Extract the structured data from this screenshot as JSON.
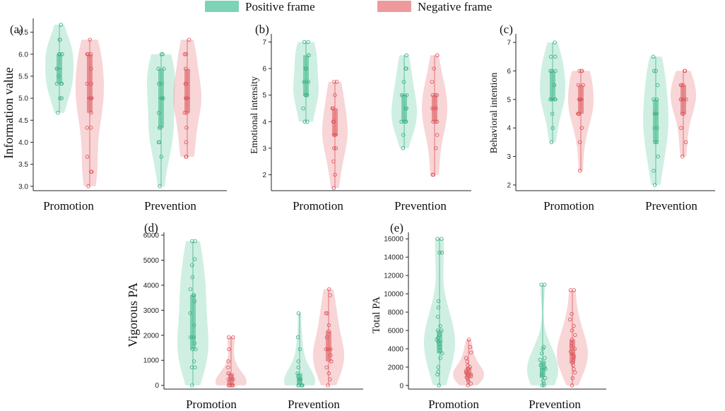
{
  "legend": {
    "positive_label": "Positive frame",
    "negative_label": "Negative frame",
    "positive_color": "#7dd3b6",
    "negative_color": "#ee9a9c"
  },
  "colors": {
    "positive_fill": "#a8e2cc",
    "positive_stroke": "#3fb486",
    "positive_box": "#5fc49c",
    "negative_fill": "#f3b3b5",
    "negative_stroke": "#de5a60",
    "negative_box": "#e27378"
  },
  "chart_data": [
    {
      "type": "violin",
      "panel": "(a)",
      "ylabel": "Information value",
      "ylim": [
        2.9,
        6.75
      ],
      "yticks": [
        3.0,
        3.5,
        4.0,
        4.5,
        5.0,
        5.5,
        6.0,
        6.5
      ],
      "tick_decimals": 1,
      "categories": [
        "Promotion",
        "Prevention"
      ],
      "groups": [
        {
          "category": "Promotion",
          "frame": "positive",
          "min": 4.67,
          "q1": 5.33,
          "median": 5.67,
          "q3": 6.0,
          "max": 6.67,
          "points": [
            4.67,
            5.0,
            5.0,
            5.33,
            5.33,
            5.33,
            5.5,
            5.67,
            5.67,
            6.0,
            6.0,
            6.0,
            6.0,
            6.33,
            6.33,
            6.67
          ]
        },
        {
          "category": "Promotion",
          "frame": "negative",
          "min": 3.0,
          "q1": 4.67,
          "median": 5.0,
          "q3": 6.0,
          "max": 6.33,
          "points": [
            3.0,
            3.33,
            3.33,
            3.67,
            4.33,
            4.33,
            4.67,
            5.0,
            5.0,
            5.0,
            5.33,
            5.33,
            5.67,
            6.0,
            6.0,
            6.0,
            6.33
          ]
        },
        {
          "category": "Prevention",
          "frame": "positive",
          "min": 3.0,
          "q1": 4.33,
          "median": 5.0,
          "q3": 5.67,
          "max": 6.0,
          "points": [
            3.0,
            3.67,
            4.0,
            4.0,
            4.33,
            4.33,
            4.67,
            5.0,
            5.0,
            5.33,
            5.33,
            5.67,
            5.67,
            6.0,
            6.0
          ]
        },
        {
          "category": "Prevention",
          "frame": "negative",
          "min": 3.67,
          "q1": 4.67,
          "median": 5.0,
          "q3": 5.67,
          "max": 6.33,
          "points": [
            3.67,
            3.67,
            4.0,
            4.33,
            4.67,
            4.67,
            5.0,
            5.0,
            5.0,
            5.33,
            5.33,
            5.67,
            6.0,
            6.0,
            6.33
          ]
        }
      ]
    },
    {
      "type": "violin",
      "panel": "(b)",
      "ylabel": "Emotional intensity",
      "ylim": [
        1.4,
        7.2
      ],
      "yticks": [
        2,
        3,
        4,
        5,
        6,
        7
      ],
      "tick_decimals": 0,
      "categories": [
        "Promotion",
        "Prevention"
      ],
      "groups": [
        {
          "category": "Promotion",
          "frame": "positive",
          "min": 4.0,
          "q1": 5.0,
          "median": 5.5,
          "q3": 6.5,
          "max": 7.0,
          "points": [
            4.0,
            4.0,
            4.5,
            5.0,
            5.0,
            5.0,
            5.5,
            5.5,
            6.0,
            6.0,
            6.5,
            6.5,
            7.0,
            7.0
          ]
        },
        {
          "category": "Promotion",
          "frame": "negative",
          "min": 1.5,
          "q1": 3.5,
          "median": 3.5,
          "q3": 4.5,
          "max": 5.5,
          "points": [
            1.5,
            2.0,
            2.5,
            3.0,
            3.0,
            3.5,
            3.5,
            3.5,
            4.0,
            4.0,
            4.5,
            4.5,
            5.0,
            5.5,
            5.5
          ]
        },
        {
          "category": "Prevention",
          "frame": "positive",
          "min": 3.0,
          "q1": 4.0,
          "median": 5.0,
          "q3": 5.0,
          "max": 6.5,
          "points": [
            3.0,
            3.5,
            4.0,
            4.0,
            4.0,
            4.0,
            4.5,
            4.5,
            5.0,
            5.0,
            5.0,
            5.5,
            6.0,
            6.0,
            6.5
          ]
        },
        {
          "category": "Prevention",
          "frame": "negative",
          "min": 2.0,
          "q1": 4.0,
          "median": 4.5,
          "q3": 5.0,
          "max": 6.5,
          "points": [
            2.0,
            2.0,
            3.0,
            3.5,
            4.0,
            4.0,
            4.0,
            4.5,
            4.5,
            5.0,
            5.0,
            5.0,
            5.5,
            6.0,
            6.5
          ]
        }
      ]
    },
    {
      "type": "violin",
      "panel": "(c)",
      "ylabel": "Behavioral intention",
      "ylim": [
        1.8,
        7.2
      ],
      "yticks": [
        2,
        3,
        4,
        5,
        6,
        7
      ],
      "tick_decimals": 0,
      "categories": [
        "Promotion",
        "Prevention"
      ],
      "groups": [
        {
          "category": "Promotion",
          "frame": "positive",
          "min": 3.5,
          "q1": 5.0,
          "median": 5.0,
          "q3": 6.0,
          "max": 7.0,
          "points": [
            3.5,
            4.0,
            4.5,
            5.0,
            5.0,
            5.0,
            5.0,
            5.5,
            5.5,
            6.0,
            6.0,
            6.0,
            6.5,
            6.5,
            7.0
          ]
        },
        {
          "category": "Promotion",
          "frame": "negative",
          "min": 2.5,
          "q1": 4.5,
          "median": 5.0,
          "q3": 5.5,
          "max": 6.0,
          "points": [
            2.5,
            3.5,
            4.0,
            4.5,
            4.5,
            4.5,
            5.0,
            5.0,
            5.0,
            5.5,
            5.5,
            6.0,
            6.0,
            6.0
          ]
        },
        {
          "category": "Prevention",
          "frame": "positive",
          "min": 2.0,
          "q1": 3.5,
          "median": 4.5,
          "q3": 5.0,
          "max": 6.5,
          "points": [
            2.0,
            2.5,
            3.0,
            3.5,
            3.5,
            4.0,
            4.0,
            4.5,
            4.5,
            5.0,
            5.0,
            5.5,
            6.0,
            6.0,
            6.5
          ]
        },
        {
          "category": "Prevention",
          "frame": "negative",
          "min": 3.0,
          "q1": 4.5,
          "median": 5.0,
          "q3": 5.5,
          "max": 6.0,
          "points": [
            3.0,
            3.5,
            4.0,
            4.5,
            4.5,
            5.0,
            5.0,
            5.0,
            5.0,
            5.5,
            5.5,
            5.5,
            6.0,
            6.0
          ]
        }
      ]
    },
    {
      "type": "violin",
      "panel": "(d)",
      "ylabel": "Vigorous PA",
      "ylim": [
        -150,
        6000
      ],
      "yticks": [
        0,
        1000,
        2000,
        3000,
        4000,
        5000,
        6000
      ],
      "tick_decimals": 0,
      "categories": [
        "Promotion",
        "Prevention"
      ],
      "groups": [
        {
          "category": "Promotion",
          "frame": "positive",
          "min": 0,
          "q1": 1440,
          "median": 1920,
          "q3": 3600,
          "max": 5760,
          "points": [
            0,
            720,
            720,
            960,
            1440,
            1440,
            1680,
            1920,
            1920,
            2400,
            2880,
            3360,
            3600,
            3600,
            3840,
            4320,
            4800,
            5040,
            5760,
            5760
          ]
        },
        {
          "category": "Promotion",
          "frame": "negative",
          "min": 0,
          "q1": 0,
          "median": 240,
          "q3": 480,
          "max": 1920,
          "points": [
            0,
            0,
            0,
            0,
            0,
            0,
            120,
            240,
            240,
            360,
            480,
            480,
            720,
            960,
            1440,
            1920,
            1920
          ]
        },
        {
          "category": "Prevention",
          "frame": "positive",
          "min": 0,
          "q1": 0,
          "median": 240,
          "q3": 480,
          "max": 2880,
          "points": [
            0,
            0,
            0,
            0,
            0,
            0,
            120,
            240,
            240,
            360,
            480,
            720,
            960,
            1440,
            1920,
            2880
          ]
        },
        {
          "category": "Prevention",
          "frame": "negative",
          "min": 0,
          "q1": 960,
          "median": 1440,
          "q3": 2160,
          "max": 3840,
          "points": [
            0,
            240,
            480,
            720,
            960,
            960,
            1200,
            1440,
            1440,
            1440,
            1920,
            2160,
            2400,
            2880,
            2880,
            3600,
            3840
          ]
        }
      ]
    },
    {
      "type": "violin",
      "panel": "(e)",
      "ylabel": "Total PA",
      "ylim": [
        -400,
        16400
      ],
      "yticks": [
        0,
        2000,
        4000,
        6000,
        8000,
        10000,
        12000,
        14000,
        16000
      ],
      "tick_decimals": 0,
      "categories": [
        "Promotion",
        "Prevention"
      ],
      "groups": [
        {
          "category": "Promotion",
          "frame": "positive",
          "min": 0,
          "q1": 3500,
          "median": 4800,
          "q3": 6000,
          "max": 16000,
          "points": [
            0,
            1200,
            1500,
            2000,
            3000,
            3500,
            3800,
            4200,
            4500,
            4800,
            5000,
            5200,
            5500,
            6000,
            6000,
            6500,
            7500,
            8500,
            9200,
            14500,
            14500,
            16000,
            16000
          ]
        },
        {
          "category": "Promotion",
          "frame": "negative",
          "min": 0,
          "q1": 800,
          "median": 1300,
          "q3": 2000,
          "max": 5000,
          "points": [
            0,
            200,
            400,
            600,
            800,
            900,
            1000,
            1200,
            1300,
            1400,
            1600,
            1800,
            2000,
            2200,
            2600,
            3000,
            3600,
            4200,
            5000
          ]
        },
        {
          "category": "Prevention",
          "frame": "positive",
          "min": 0,
          "q1": 900,
          "median": 1800,
          "q3": 2600,
          "max": 11000,
          "points": [
            0,
            0,
            200,
            500,
            800,
            1000,
            1200,
            1500,
            1800,
            2000,
            2200,
            2500,
            2800,
            3000,
            3500,
            4000,
            4200,
            11000,
            11000
          ]
        },
        {
          "category": "Prevention",
          "frame": "negative",
          "min": 0,
          "q1": 2400,
          "median": 3400,
          "q3": 5000,
          "max": 10400,
          "points": [
            0,
            800,
            1400,
            1800,
            2200,
            2500,
            2800,
            3000,
            3200,
            3400,
            3700,
            4000,
            4300,
            4600,
            5000,
            5500,
            6000,
            6500,
            7200,
            7800,
            10400,
            10400
          ]
        }
      ]
    }
  ]
}
